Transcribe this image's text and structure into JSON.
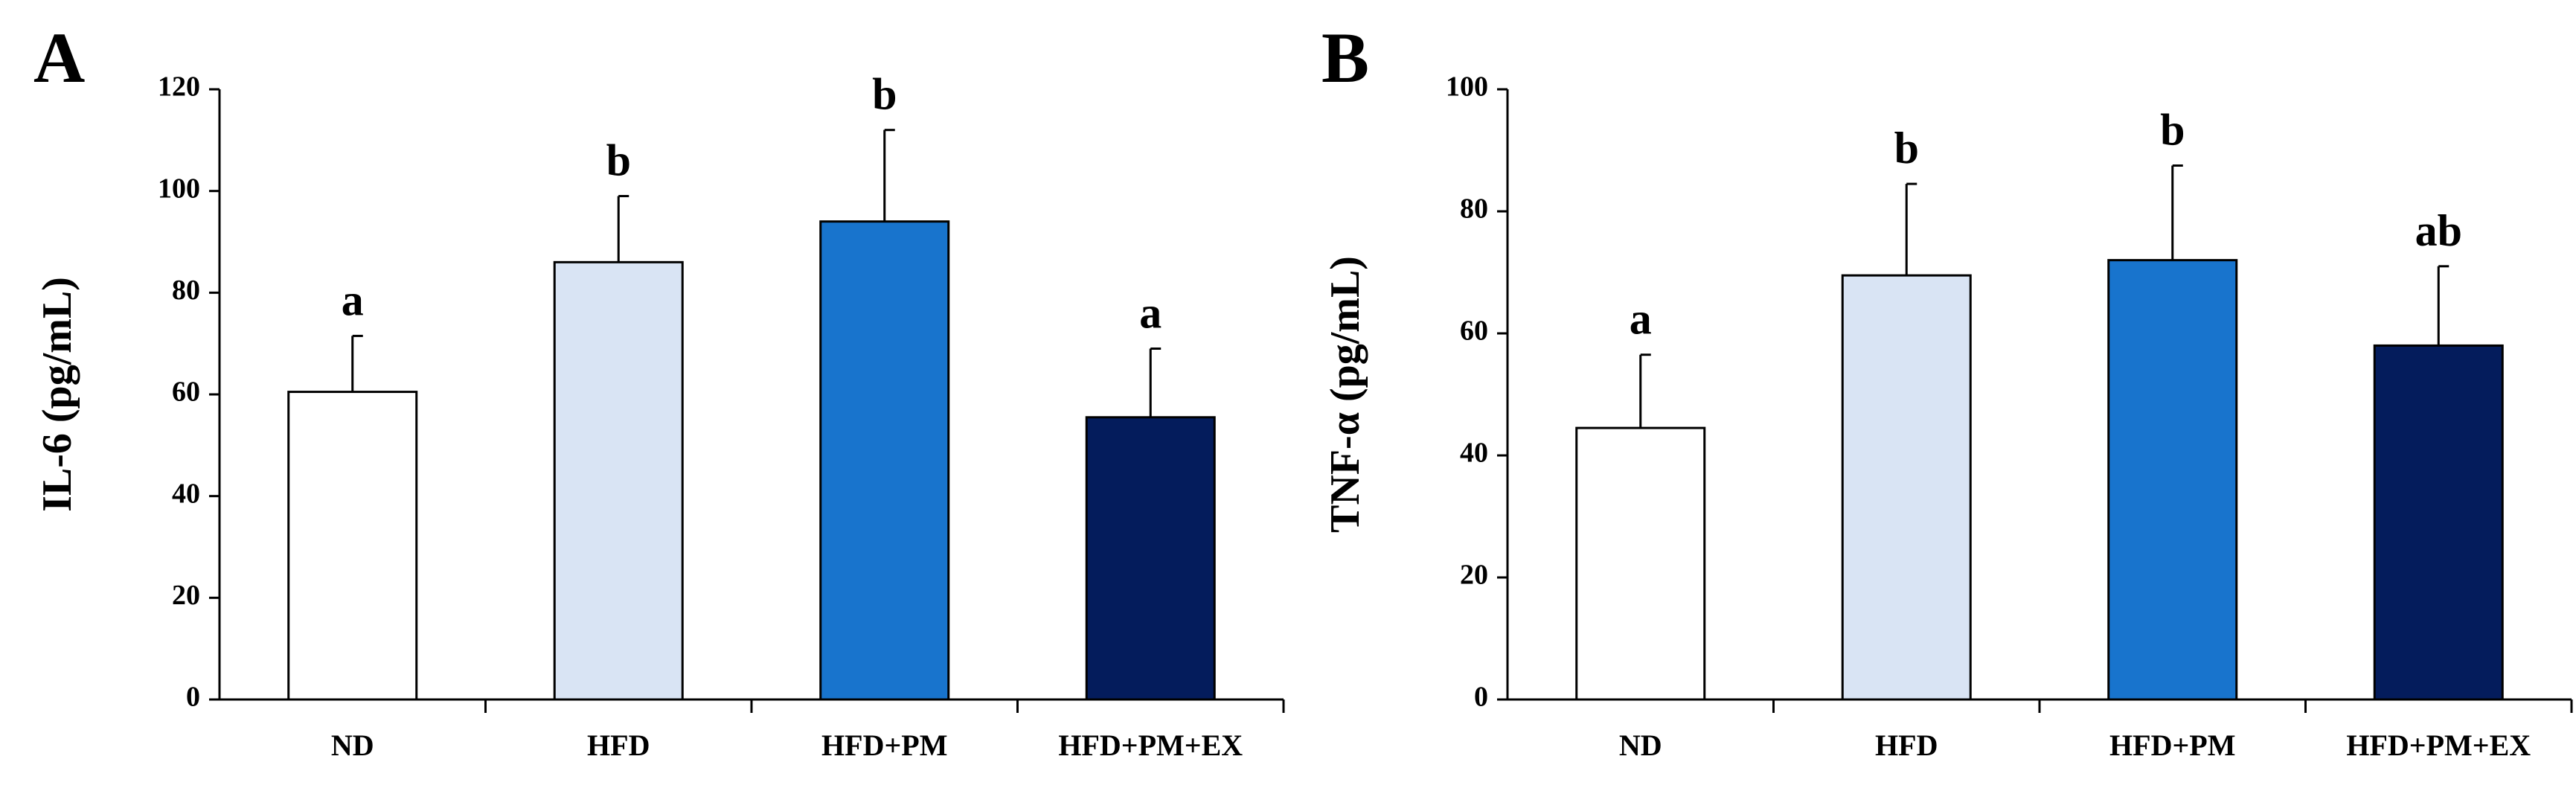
{
  "chart_data": [
    {
      "type": "bar",
      "panel": "A",
      "title": "",
      "xlabel": "",
      "ylabel": "IL-6 (pg/mL)",
      "ylim": [
        0,
        120
      ],
      "yticks": [
        0,
        20,
        40,
        60,
        80,
        100,
        120
      ],
      "categories": [
        "ND",
        "HFD",
        "HFD+PM",
        "HFD+PM+EX"
      ],
      "values": [
        60.5,
        86,
        94,
        55.5
      ],
      "errors": [
        11,
        13,
        18,
        13.5
      ],
      "significance": [
        "a",
        "b",
        "b",
        "a"
      ],
      "bar_colors": [
        "#ffffff",
        "#d9e4f4",
        "#1874cd",
        "#041c5c"
      ],
      "grid": false,
      "legend": "none"
    },
    {
      "type": "bar",
      "panel": "B",
      "title": "",
      "xlabel": "",
      "ylabel": "TNF-α (pg/mL)",
      "ylim": [
        0,
        100
      ],
      "yticks": [
        0,
        20,
        40,
        60,
        80,
        100
      ],
      "categories": [
        "ND",
        "HFD",
        "HFD+PM",
        "HFD+PM+EX"
      ],
      "values": [
        44.5,
        69.5,
        72,
        58
      ],
      "errors": [
        12,
        15,
        15.5,
        13
      ],
      "significance": [
        "a",
        "b",
        "b",
        "ab"
      ],
      "bar_colors": [
        "#ffffff",
        "#d9e4f4",
        "#1874cd",
        "#041c5c"
      ],
      "grid": false,
      "legend": "none"
    }
  ]
}
